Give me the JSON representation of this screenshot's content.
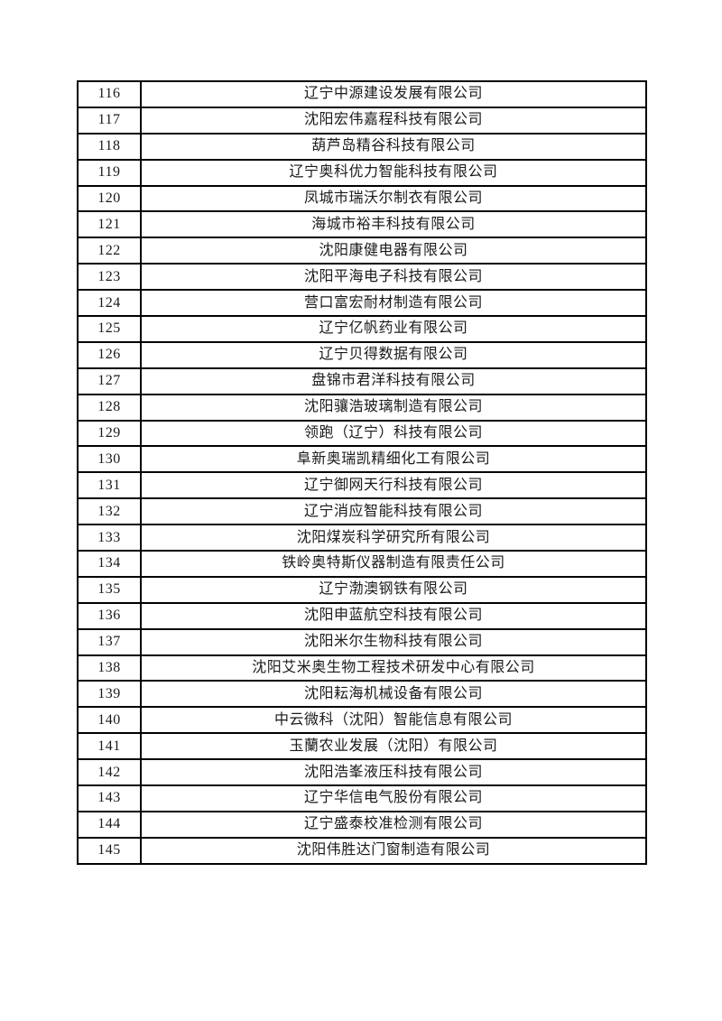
{
  "page": {
    "background_color": "#ffffff",
    "text_color": "#1a1a1a",
    "border_color": "#000000"
  },
  "table": {
    "rows": [
      {
        "no": "116",
        "company": "辽宁中源建设发展有限公司"
      },
      {
        "no": "117",
        "company": "沈阳宏伟嘉程科技有限公司"
      },
      {
        "no": "118",
        "company": "葫芦岛精谷科技有限公司"
      },
      {
        "no": "119",
        "company": "辽宁奥科优力智能科技有限公司"
      },
      {
        "no": "120",
        "company": "凤城市瑞沃尔制衣有限公司"
      },
      {
        "no": "121",
        "company": "海城市裕丰科技有限公司"
      },
      {
        "no": "122",
        "company": "沈阳康健电器有限公司"
      },
      {
        "no": "123",
        "company": "沈阳平海电子科技有限公司"
      },
      {
        "no": "124",
        "company": "营口富宏耐材制造有限公司"
      },
      {
        "no": "125",
        "company": "辽宁亿帆药业有限公司"
      },
      {
        "no": "126",
        "company": "辽宁贝得数据有限公司"
      },
      {
        "no": "127",
        "company": "盘锦市君洋科技有限公司"
      },
      {
        "no": "128",
        "company": "沈阳骧浩玻璃制造有限公司"
      },
      {
        "no": "129",
        "company": "领跑（辽宁）科技有限公司"
      },
      {
        "no": "130",
        "company": "阜新奥瑞凯精细化工有限公司"
      },
      {
        "no": "131",
        "company": "辽宁御网天行科技有限公司"
      },
      {
        "no": "132",
        "company": "辽宁消应智能科技有限公司"
      },
      {
        "no": "133",
        "company": "沈阳煤炭科学研究所有限公司"
      },
      {
        "no": "134",
        "company": "铁岭奥特斯仪器制造有限责任公司"
      },
      {
        "no": "135",
        "company": "辽宁渤澳钢铁有限公司"
      },
      {
        "no": "136",
        "company": "沈阳申蓝航空科技有限公司"
      },
      {
        "no": "137",
        "company": "沈阳米尔生物科技有限公司"
      },
      {
        "no": "138",
        "company": "沈阳艾米奥生物工程技术研发中心有限公司"
      },
      {
        "no": "139",
        "company": "沈阳耘海机械设备有限公司"
      },
      {
        "no": "140",
        "company": "中云微科（沈阳）智能信息有限公司"
      },
      {
        "no": "141",
        "company": "玉蘭农业发展（沈阳）有限公司"
      },
      {
        "no": "142",
        "company": "沈阳浩峯液压科技有限公司"
      },
      {
        "no": "143",
        "company": "辽宁华信电气股份有限公司"
      },
      {
        "no": "144",
        "company": "辽宁盛泰校准检测有限公司"
      },
      {
        "no": "145",
        "company": "沈阳伟胜达门窗制造有限公司"
      }
    ]
  }
}
